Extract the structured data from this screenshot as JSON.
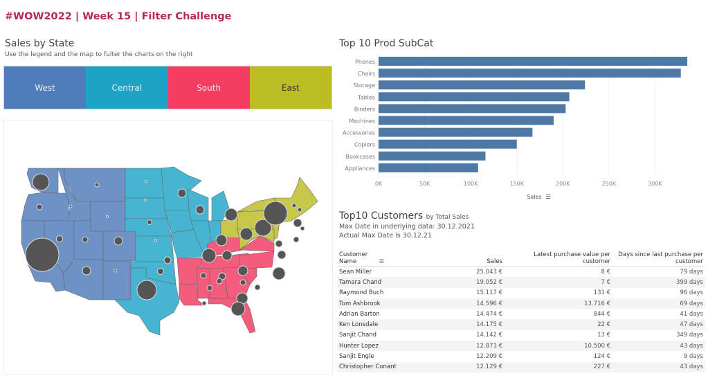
{
  "header": {
    "title": "#WOW2022 | Week 15 | Filter Challenge"
  },
  "sales_by_state": {
    "title": "Sales by State",
    "subtitle": "Use the legend and the map to fulter the charts on the right",
    "legend": [
      {
        "label": "West",
        "color": "#4f7cba",
        "text_color": "#e6ecf5"
      },
      {
        "label": "Central",
        "color": "#1ca3c6",
        "text_color": "#e3f4f9"
      },
      {
        "label": "South",
        "color": "#f53d61",
        "text_color": "#fde3e8"
      },
      {
        "label": "East",
        "color": "#bcbd22",
        "text_color": "#333333"
      }
    ],
    "map_colors": {
      "West": "#6e92c6",
      "Central": "#47b5d1",
      "South": "#f45c7d",
      "East": "#c7c84a",
      "bubble": "#555555"
    }
  },
  "chart_data": {
    "type": "bar",
    "title": "Top 10 Prod SubCat",
    "categories": [
      "Phones",
      "Chairs",
      "Storage",
      "Tables",
      "Binders",
      "Machines",
      "Accessories",
      "Copiers",
      "Bookcases",
      "Appliances"
    ],
    "values": [
      335000,
      328000,
      224000,
      207000,
      203000,
      190000,
      167000,
      150000,
      116000,
      108000
    ],
    "xlabel": "Sales",
    "ylabel": "",
    "xticks": [
      "0K",
      "50K",
      "100K",
      "150K",
      "200K",
      "250K",
      "300K"
    ],
    "xlim": [
      0,
      350000
    ],
    "grid": true,
    "color": "#4e79a7"
  },
  "customers": {
    "title": "Top10 Customers",
    "title_suffix": "by Total Sales",
    "max_date_line": "Max Date in underlying data: 30.12.2021",
    "actual_date_line": "Actual Max Date is 30.12.21",
    "columns": {
      "name_1": "Customer",
      "name_2": "Name",
      "sales": "Sales",
      "latest_1": "Latest purchase value per",
      "latest_2": "customer",
      "days_1": "Days since last purchase per",
      "days_2": "customer"
    },
    "rows": [
      {
        "name": "Sean Miller",
        "sales": "25.043 €",
        "latest": "8 €",
        "days": "79 days"
      },
      {
        "name": "Tamara Chand",
        "sales": "19.052 €",
        "latest": "7 €",
        "days": "399 days"
      },
      {
        "name": "Raymond Buch",
        "sales": "15.117 €",
        "latest": "131 €",
        "days": "96 days"
      },
      {
        "name": "Tom Ashbrook",
        "sales": "14.596 €",
        "latest": "13.716 €",
        "days": "69 days"
      },
      {
        "name": "Adrian Barton",
        "sales": "14.474 €",
        "latest": "844 €",
        "days": "41 days"
      },
      {
        "name": "Ken Lonsdale",
        "sales": "14.175 €",
        "latest": "22 €",
        "days": "47 days"
      },
      {
        "name": "Sanjit Chand",
        "sales": "14.142 €",
        "latest": "13 €",
        "days": "349 days"
      },
      {
        "name": "Hunter Lopez",
        "sales": "12.873 €",
        "latest": "10.500 €",
        "days": "43 days"
      },
      {
        "name": "Sanjit Engle",
        "sales": "12.209 €",
        "latest": "124 €",
        "days": "9 days"
      },
      {
        "name": "Christopher Conant",
        "sales": "12.129 €",
        "latest": "227 €",
        "days": "43 days"
      }
    ]
  },
  "icons": {
    "sort": "sort-descending-icon"
  }
}
